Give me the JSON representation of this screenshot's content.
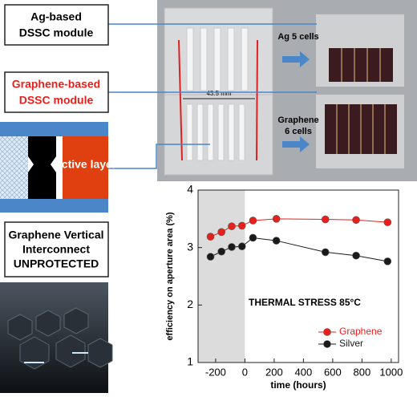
{
  "labels": {
    "ag_module": [
      "Ag-based",
      "DSSC module"
    ],
    "graphene_module": [
      "Graphene-based",
      "DSSC module"
    ],
    "active_layer": "Active layer",
    "interconnect": [
      "Graphene Vertical",
      "Interconnect",
      "UNPROTECTED"
    ],
    "width": "43.5 mm",
    "ag_cells": "Ag 5 cells",
    "graphene_cells": [
      "Graphene",
      "6 cells"
    ]
  },
  "chart_data": {
    "type": "line",
    "annotation": "THERMAL STRESS 85°C",
    "x_label": "time (hours)",
    "y_label": "efficiency on aperture area (%)",
    "x": [
      -235,
      -160,
      -90,
      -20,
      55,
      215,
      550,
      760,
      975
    ],
    "series": [
      {
        "name": "Graphene",
        "color": "#e8201c",
        "values": [
          3.19,
          3.27,
          3.37,
          3.38,
          3.47,
          3.5,
          3.49,
          3.48,
          3.44
        ]
      },
      {
        "name": "Silver",
        "color": "#1a1a1a",
        "values": [
          2.84,
          2.93,
          3.01,
          3.02,
          3.17,
          3.12,
          2.92,
          2.86,
          2.76
        ]
      }
    ],
    "xlim": [
      -320,
      1050
    ],
    "ylim": [
      1,
      4
    ],
    "xticks": [
      -200,
      0,
      200,
      400,
      600,
      800,
      1000
    ],
    "yticks": [
      1,
      2,
      3,
      4
    ],
    "legend": "lower right"
  }
}
